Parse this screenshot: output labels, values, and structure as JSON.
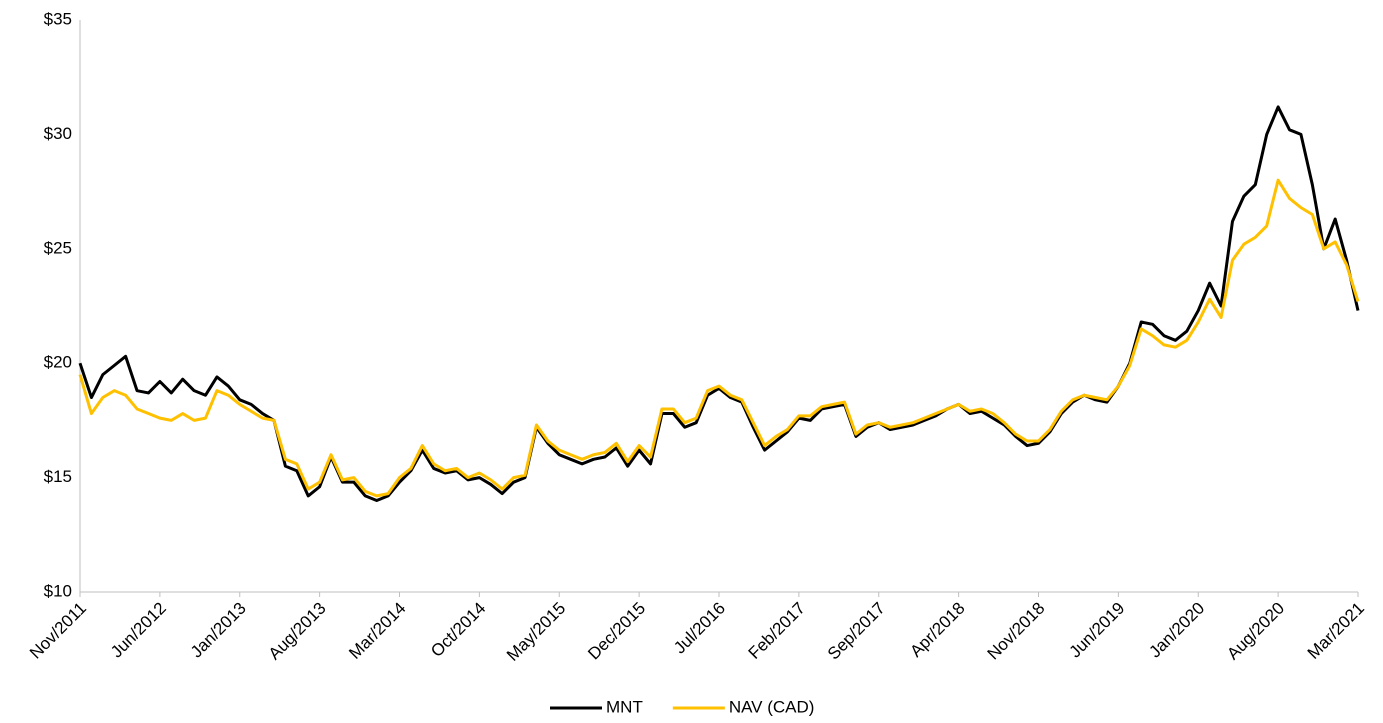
{
  "chart_data": {
    "type": "line",
    "x": [
      "2011-11",
      "2011-12",
      "2012-01",
      "2012-02",
      "2012-03",
      "2012-04",
      "2012-05",
      "2012-06",
      "2012-07",
      "2012-08",
      "2012-09",
      "2012-10",
      "2012-11",
      "2012-12",
      "2013-01",
      "2013-02",
      "2013-03",
      "2013-04",
      "2013-05",
      "2013-06",
      "2013-07",
      "2013-08",
      "2013-09",
      "2013-10",
      "2013-11",
      "2013-12",
      "2014-01",
      "2014-02",
      "2014-03",
      "2014-04",
      "2014-05",
      "2014-06",
      "2014-07",
      "2014-08",
      "2014-09",
      "2014-10",
      "2014-11",
      "2014-12",
      "2015-01",
      "2015-02",
      "2015-03",
      "2015-04",
      "2015-05",
      "2015-06",
      "2015-07",
      "2015-08",
      "2015-09",
      "2015-10",
      "2015-11",
      "2015-12",
      "2016-01",
      "2016-02",
      "2016-03",
      "2016-04",
      "2016-05",
      "2016-06",
      "2016-07",
      "2016-08",
      "2016-09",
      "2016-10",
      "2016-11",
      "2016-12",
      "2017-01",
      "2017-02",
      "2017-03",
      "2017-04",
      "2017-05",
      "2017-06",
      "2017-07",
      "2017-08",
      "2017-09",
      "2017-10",
      "2017-11",
      "2017-12",
      "2018-01",
      "2018-02",
      "2018-03",
      "2018-04",
      "2018-05",
      "2018-06",
      "2018-07",
      "2018-08",
      "2018-09",
      "2018-10",
      "2018-11",
      "2018-12",
      "2019-01",
      "2019-02",
      "2019-03",
      "2019-04",
      "2019-05",
      "2019-06",
      "2019-07",
      "2019-08",
      "2019-09",
      "2019-10",
      "2019-11",
      "2019-12",
      "2020-01",
      "2020-02",
      "2020-03",
      "2020-04",
      "2020-05",
      "2020-06",
      "2020-07",
      "2020-08",
      "2020-09",
      "2020-10",
      "2020-11",
      "2020-12",
      "2021-01",
      "2021-02",
      "2021-03"
    ],
    "series": [
      {
        "name": "MNT",
        "color": "#000000",
        "values": [
          20.0,
          18.5,
          19.5,
          19.9,
          20.3,
          18.8,
          18.7,
          19.2,
          18.7,
          19.3,
          18.8,
          18.6,
          19.4,
          19.0,
          18.4,
          18.2,
          17.8,
          17.5,
          15.5,
          15.3,
          14.2,
          14.6,
          15.9,
          14.8,
          14.8,
          14.2,
          14.0,
          14.2,
          14.8,
          15.3,
          16.2,
          15.4,
          15.2,
          15.3,
          14.9,
          15.0,
          14.7,
          14.3,
          14.8,
          15.0,
          17.2,
          16.5,
          16.0,
          15.8,
          15.6,
          15.8,
          15.9,
          16.3,
          15.5,
          16.2,
          15.6,
          17.8,
          17.8,
          17.2,
          17.4,
          18.6,
          18.9,
          18.5,
          18.3,
          17.2,
          16.2,
          16.6,
          17.0,
          17.6,
          17.5,
          18.0,
          18.1,
          18.2,
          16.8,
          17.2,
          17.4,
          17.1,
          17.2,
          17.3,
          17.5,
          17.7,
          18.0,
          18.2,
          17.8,
          17.9,
          17.6,
          17.3,
          16.8,
          16.4,
          16.5,
          17.0,
          17.8,
          18.3,
          18.6,
          18.4,
          18.3,
          19.0,
          20.0,
          21.8,
          21.7,
          21.2,
          21.0,
          21.4,
          22.3,
          23.5,
          22.5,
          26.2,
          27.3,
          27.8,
          30.0,
          31.2,
          30.2,
          30.0,
          27.8,
          25.0,
          26.3,
          24.5,
          22.3
        ]
      },
      {
        "name": "NAV (CAD)",
        "color": "#FFC000",
        "values": [
          19.5,
          17.8,
          18.5,
          18.8,
          18.6,
          18.0,
          17.8,
          17.6,
          17.5,
          17.8,
          17.5,
          17.6,
          18.8,
          18.6,
          18.2,
          17.9,
          17.6,
          17.5,
          15.8,
          15.6,
          14.5,
          14.8,
          16.0,
          14.9,
          15.0,
          14.4,
          14.2,
          14.3,
          15.0,
          15.4,
          16.4,
          15.6,
          15.3,
          15.4,
          15.0,
          15.2,
          14.9,
          14.5,
          15.0,
          15.1,
          17.3,
          16.6,
          16.2,
          16.0,
          15.8,
          16.0,
          16.1,
          16.5,
          15.7,
          16.4,
          15.9,
          18.0,
          18.0,
          17.4,
          17.6,
          18.8,
          19.0,
          18.6,
          18.4,
          17.4,
          16.4,
          16.8,
          17.1,
          17.7,
          17.7,
          18.1,
          18.2,
          18.3,
          16.9,
          17.3,
          17.4,
          17.2,
          17.3,
          17.4,
          17.6,
          17.8,
          18.0,
          18.2,
          17.9,
          18.0,
          17.8,
          17.4,
          16.9,
          16.6,
          16.6,
          17.1,
          17.9,
          18.4,
          18.6,
          18.5,
          18.4,
          19.0,
          19.9,
          21.5,
          21.2,
          20.8,
          20.7,
          21.0,
          21.8,
          22.8,
          22.0,
          24.5,
          25.2,
          25.5,
          26.0,
          28.0,
          27.2,
          26.8,
          26.5,
          25.0,
          25.3,
          24.3,
          22.7
        ]
      }
    ],
    "xlim": [
      "2011-11",
      "2021-03"
    ],
    "xticks": [
      {
        "value": "2011-11",
        "label": "Nov/2011"
      },
      {
        "value": "2012-06",
        "label": "Jun/2012"
      },
      {
        "value": "2013-01",
        "label": "Jan/2013"
      },
      {
        "value": "2013-08",
        "label": "Aug/2013"
      },
      {
        "value": "2014-03",
        "label": "Mar/2014"
      },
      {
        "value": "2014-10",
        "label": "Oct/2014"
      },
      {
        "value": "2015-05",
        "label": "May/2015"
      },
      {
        "value": "2015-12",
        "label": "Dec/2015"
      },
      {
        "value": "2016-07",
        "label": "Jul/2016"
      },
      {
        "value": "2017-02",
        "label": "Feb/2017"
      },
      {
        "value": "2017-09",
        "label": "Sep/2017"
      },
      {
        "value": "2018-04",
        "label": "Apr/2018"
      },
      {
        "value": "2018-11",
        "label": "Nov/2018"
      },
      {
        "value": "2019-06",
        "label": "Jun/2019"
      },
      {
        "value": "2020-01",
        "label": "Jan/2020"
      },
      {
        "value": "2020-08",
        "label": "Aug/2020"
      },
      {
        "value": "2021-03",
        "label": "Mar/2021"
      }
    ],
    "ylim": [
      10,
      35
    ],
    "yticks": [
      {
        "value": 10,
        "label": "$10"
      },
      {
        "value": 15,
        "label": "$15"
      },
      {
        "value": 20,
        "label": "$20"
      },
      {
        "value": 25,
        "label": "$25"
      },
      {
        "value": 30,
        "label": "$30"
      },
      {
        "value": 35,
        "label": "$35"
      }
    ],
    "grid": false,
    "legend": "bottom"
  }
}
